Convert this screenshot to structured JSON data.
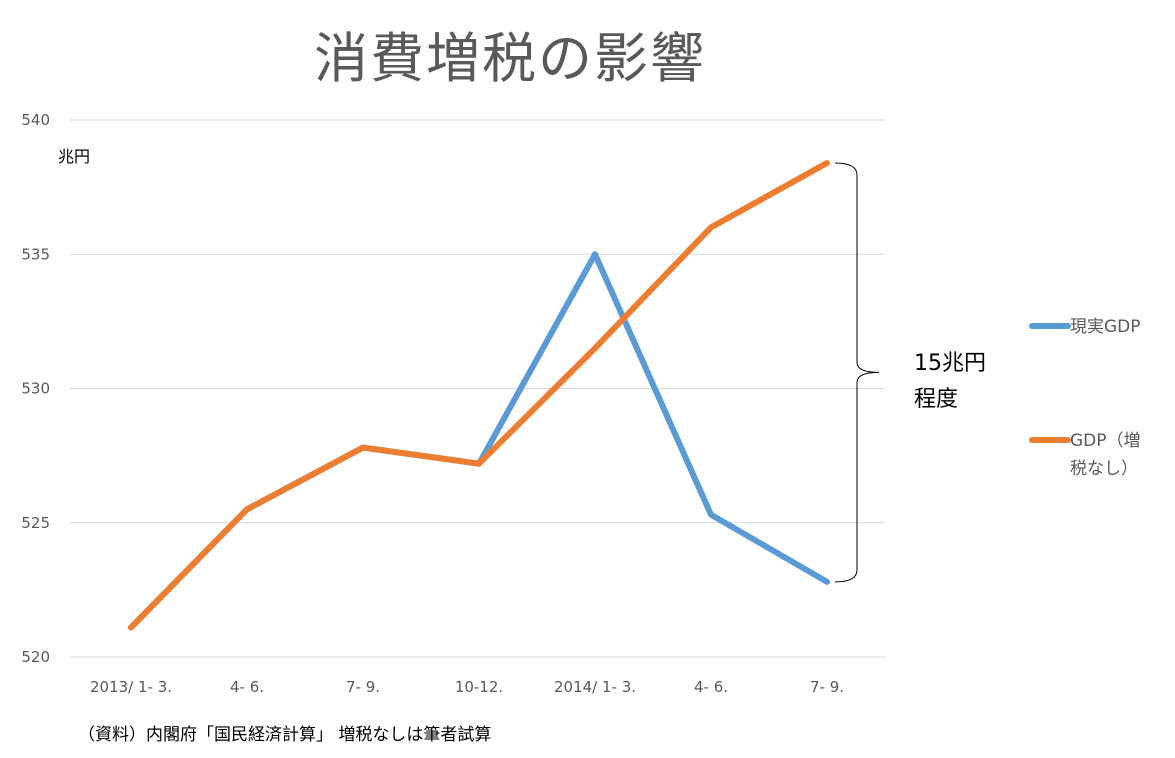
{
  "chart_data": {
    "type": "line",
    "title": "消費増税の影響",
    "ylabel": "兆円",
    "ylim": [
      520,
      540
    ],
    "yticks": [
      "520",
      "525",
      "530",
      "535",
      "540"
    ],
    "categories": [
      "2013/ 1- 3.",
      "4- 6.",
      "7- 9.",
      "10-12.",
      "2014/ 1- 3.",
      "4- 6.",
      "7- 9."
    ],
    "series": [
      {
        "name": "現実GDP",
        "color": "#5B9BD5",
        "values": [
          521.1,
          525.5,
          527.8,
          527.2,
          535.0,
          525.3,
          522.8
        ]
      },
      {
        "name": "GDP（増税なし）",
        "name_lines": [
          "GDP（増",
          "税なし）"
        ],
        "color": "#ED7D31",
        "values": [
          521.1,
          525.5,
          527.8,
          527.2,
          531.5,
          536.0,
          538.4
        ]
      }
    ],
    "annotation": {
      "lines": [
        "15兆円",
        "程度"
      ],
      "from": 522.8,
      "to": 538.4
    },
    "grid": true,
    "legend": "right",
    "source_note": "（資料）内閣府「国民経済計算」 増税なしは筆者試算"
  }
}
